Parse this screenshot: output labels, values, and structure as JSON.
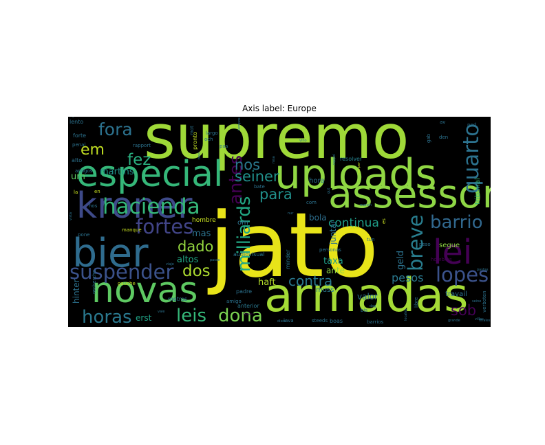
{
  "chart_data": {
    "type": "wordcloud",
    "title": "Axis label: Europe",
    "background": "#000000",
    "palette": "viridis",
    "words": [
      {
        "text": "jato",
        "weight": 1.0,
        "color": "#e8e419"
      },
      {
        "text": "supremo",
        "weight": 0.68,
        "color": "#9fd938"
      },
      {
        "text": "armadas",
        "weight": 0.52,
        "color": "#a5db36"
      },
      {
        "text": "uploads",
        "weight": 0.46,
        "color": "#90d743"
      },
      {
        "text": "assessor",
        "weight": 0.44,
        "color": "#8ed645"
      },
      {
        "text": "bier",
        "weight": 0.44,
        "color": "#2f6c8e"
      },
      {
        "text": "especial",
        "weight": 0.4,
        "color": "#35b779"
      },
      {
        "text": "kroner",
        "weight": 0.4,
        "color": "#3e4a89"
      },
      {
        "text": "novas",
        "weight": 0.4,
        "color": "#5ec962"
      },
      {
        "text": "lei",
        "weight": 0.38,
        "color": "#440154"
      },
      {
        "text": "quarto",
        "weight": 0.24,
        "color": "#2c728e"
      },
      {
        "text": "hacienda",
        "weight": 0.24,
        "color": "#35b779"
      },
      {
        "text": "suspender",
        "weight": 0.22,
        "color": "#3b528b"
      },
      {
        "text": "fortes",
        "weight": 0.22,
        "color": "#414487"
      },
      {
        "text": "antes",
        "weight": 0.2,
        "color": "#440154"
      },
      {
        "text": "breve",
        "weight": 0.22,
        "color": "#287d8e"
      },
      {
        "text": "barrio",
        "weight": 0.2,
        "color": "#31688e"
      },
      {
        "text": "lopes",
        "weight": 0.22,
        "color": "#3b528b"
      },
      {
        "text": "milliards",
        "weight": 0.2,
        "color": "#22a884"
      },
      {
        "text": "horas",
        "weight": 0.2,
        "color": "#2a788e"
      },
      {
        "text": "dona",
        "weight": 0.2,
        "color": "#7ad151"
      },
      {
        "text": "leis",
        "weight": 0.2,
        "color": "#35b779"
      },
      {
        "text": "fora",
        "weight": 0.19,
        "color": "#2c728e"
      },
      {
        "text": "fez",
        "weight": 0.18,
        "color": "#29af7f"
      },
      {
        "text": "em",
        "weight": 0.17,
        "color": "#c2df23"
      },
      {
        "text": "dos",
        "weight": 0.18,
        "color": "#addc30"
      },
      {
        "text": "dado",
        "weight": 0.16,
        "color": "#95d840"
      },
      {
        "text": "seiner",
        "weight": 0.16,
        "color": "#21918c"
      },
      {
        "text": "nos",
        "weight": 0.16,
        "color": "#2a788e"
      },
      {
        "text": "para",
        "weight": 0.16,
        "color": "#21918c"
      },
      {
        "text": "contra",
        "weight": 0.15,
        "color": "#2a788e"
      },
      {
        "text": "sob",
        "weight": 0.16,
        "color": "#440154"
      },
      {
        "text": "continua",
        "weight": 0.13,
        "color": "#1f9e89"
      },
      {
        "text": "pesos",
        "weight": 0.12,
        "color": "#2a788e"
      },
      {
        "text": "taxa",
        "weight": 0.1,
        "color": "#1f9e89"
      },
      {
        "text": "geld",
        "weight": 0.1,
        "color": "#2c728e"
      },
      {
        "text": "haft",
        "weight": 0.1,
        "color": "#b5de2b"
      },
      {
        "text": "altos",
        "weight": 0.1,
        "color": "#22a884"
      },
      {
        "text": "mas",
        "weight": 0.1,
        "color": "#2c728e"
      },
      {
        "text": "martins",
        "weight": 0.1,
        "color": "#21918c"
      },
      {
        "text": "um",
        "weight": 0.1,
        "color": "#5ec962"
      },
      {
        "text": "hinter",
        "weight": 0.09,
        "color": "#2c728e"
      },
      {
        "text": "erst",
        "weight": 0.09,
        "color": "#20a386"
      },
      {
        "text": "valor",
        "weight": 0.09,
        "color": "#2c728e"
      },
      {
        "text": "ante",
        "weight": 0.09,
        "color": "#8fd744"
      },
      {
        "text": "juntar",
        "weight": 0.09,
        "color": "#2c728e"
      },
      {
        "text": "bola",
        "weight": 0.09,
        "color": "#2e6f8e"
      },
      {
        "text": "hora",
        "weight": 0.08,
        "color": "#2c728e"
      },
      {
        "text": "muss",
        "weight": 0.08,
        "color": "#2a788e"
      },
      {
        "text": "segue",
        "weight": 0.08,
        "color": "#8fd744"
      },
      {
        "text": "travail",
        "weight": 0.08,
        "color": "#2c728e"
      },
      {
        "text": "tribunal",
        "weight": 0.08,
        "color": "#35b779"
      },
      {
        "text": "om",
        "weight": 0.08,
        "color": "#2c728e"
      },
      {
        "text": "hombre",
        "weight": 0.07,
        "color": "#c8e020"
      },
      {
        "text": "audiovisual",
        "weight": 0.06,
        "color": "#2a788e"
      },
      {
        "text": "minder",
        "weight": 0.06,
        "color": "#2a788e"
      },
      {
        "text": "resolver",
        "weight": 0.06,
        "color": "#26828e"
      },
      {
        "text": "anterior",
        "weight": 0.06,
        "color": "#2a788e"
      },
      {
        "text": "padre",
        "weight": 0.06,
        "color": "#2c728e"
      },
      {
        "text": "metros",
        "weight": 0.06,
        "color": "#2c728e"
      },
      {
        "text": "alto",
        "weight": 0.06,
        "color": "#2c728e"
      },
      {
        "text": "forte",
        "weight": 0.06,
        "color": "#2c728e"
      },
      {
        "text": "lento",
        "weight": 0.06,
        "color": "#2c728e"
      },
      {
        "text": "pronto",
        "weight": 0.06,
        "color": "#c2df23"
      },
      {
        "text": "amigos",
        "weight": 0.05,
        "color": "#2c728e"
      },
      {
        "text": "penal",
        "weight": 0.05,
        "color": "#2c728e"
      },
      {
        "text": "pone",
        "weight": 0.05,
        "color": "#2c728e"
      },
      {
        "text": "manque",
        "weight": 0.05,
        "color": "#c8e020"
      },
      {
        "text": "la",
        "weight": 0.05,
        "color": "#c8e020"
      },
      {
        "text": "en",
        "weight": 0.05,
        "color": "#c8e020"
      },
      {
        "text": "hos",
        "weight": 0.05,
        "color": "#2c728e"
      },
      {
        "text": "rapport",
        "weight": 0.05,
        "color": "#2c728e"
      },
      {
        "text": "gauche",
        "weight": 0.05,
        "color": "#c8e020"
      },
      {
        "text": "recherche",
        "weight": 0.05,
        "color": "#2c728e"
      },
      {
        "text": "amigo",
        "weight": 0.05,
        "color": "#2c728e"
      },
      {
        "text": "lava",
        "weight": 0.05,
        "color": "#2c728e"
      },
      {
        "text": "boas",
        "weight": 0.06,
        "color": "#2c728e"
      },
      {
        "text": "barrios",
        "weight": 0.05,
        "color": "#2c728e"
      },
      {
        "text": "steeds",
        "weight": 0.05,
        "color": "#2c728e"
      },
      {
        "text": "hombres",
        "weight": 0.05,
        "color": "#440154"
      },
      {
        "text": "personas",
        "weight": 0.05,
        "color": "#2c728e"
      },
      {
        "text": "bis",
        "weight": 0.05,
        "color": "#2c728e"
      },
      {
        "text": "tun",
        "weight": 0.05,
        "color": "#2c728e"
      },
      {
        "text": "peso",
        "weight": 0.05,
        "color": "#2c728e"
      },
      {
        "text": "sou",
        "weight": 0.05,
        "color": "#c8e020"
      },
      {
        "text": "es",
        "weight": 0.05,
        "color": "#c8e020"
      },
      {
        "text": "nur",
        "weight": 0.04,
        "color": "#2c728e"
      },
      {
        "text": "vino",
        "weight": 0.04,
        "color": "#2c728e"
      },
      {
        "text": "den",
        "weight": 0.05,
        "color": "#2c728e"
      },
      {
        "text": "av",
        "weight": 0.05,
        "color": "#2c728e"
      },
      {
        "text": "ned",
        "weight": 0.05,
        "color": "#2c728e"
      },
      {
        "text": "gab",
        "weight": 0.05,
        "color": "#2c728e"
      },
      {
        "text": "och",
        "weight": 0.05,
        "color": "#2c728e"
      },
      {
        "text": "largo",
        "weight": 0.05,
        "color": "#2c728e"
      },
      {
        "text": "pas",
        "weight": 0.05,
        "color": "#2c728e"
      },
      {
        "text": "com",
        "weight": 0.05,
        "color": "#2c728e"
      },
      {
        "text": "mot",
        "weight": 0.05,
        "color": "#2c728e"
      },
      {
        "text": "bate",
        "weight": 0.05,
        "color": "#2c728e"
      },
      {
        "text": "verboten",
        "weight": 0.05,
        "color": "#2c728e"
      },
      {
        "text": "pastas",
        "weight": 0.04,
        "color": "#2c728e"
      },
      {
        "text": "villas",
        "weight": 0.04,
        "color": "#2c728e"
      },
      {
        "text": "locales",
        "weight": 0.04,
        "color": "#2c728e"
      },
      {
        "text": "seine",
        "weight": 0.04,
        "color": "#2c728e"
      },
      {
        "text": "finales",
        "weight": 0.04,
        "color": "#2c728e"
      },
      {
        "text": "gut",
        "weight": 0.04,
        "color": "#2c728e"
      },
      {
        "text": "rosa",
        "weight": 0.04,
        "color": "#2c728e"
      },
      {
        "text": "viaje",
        "weight": 0.04,
        "color": "#2c728e"
      },
      {
        "text": "disco",
        "weight": 0.04,
        "color": "#2c728e"
      },
      {
        "text": "dag",
        "weight": 0.04,
        "color": "#2c728e"
      },
      {
        "text": "libre",
        "weight": 0.05,
        "color": "#2c728e"
      },
      {
        "text": "vista",
        "weight": 0.04,
        "color": "#2c728e"
      },
      {
        "text": "situar",
        "weight": 0.04,
        "color": "#440154"
      },
      {
        "text": "rappel",
        "weight": 0.04,
        "color": "#2c728e"
      },
      {
        "text": "manch",
        "weight": 0.04,
        "color": "#2c728e"
      },
      {
        "text": "tout",
        "weight": 0.04,
        "color": "#2c728e"
      },
      {
        "text": "passe",
        "weight": 0.04,
        "color": "#2c728e"
      },
      {
        "text": "tempos",
        "weight": 0.04,
        "color": "#2c728e"
      },
      {
        "text": "vale",
        "weight": 0.04,
        "color": "#2c728e"
      },
      {
        "text": "romper",
        "weight": 0.04,
        "color": "#c8e020"
      },
      {
        "text": "grande",
        "weight": 0.03,
        "color": "#2c728e"
      },
      {
        "text": "sagt",
        "weight": 0.03,
        "color": "#2c728e"
      },
      {
        "text": "entre",
        "weight": 0.03,
        "color": "#2c728e"
      },
      {
        "text": "canal",
        "weight": 0.03,
        "color": "#2c728e"
      }
    ]
  }
}
